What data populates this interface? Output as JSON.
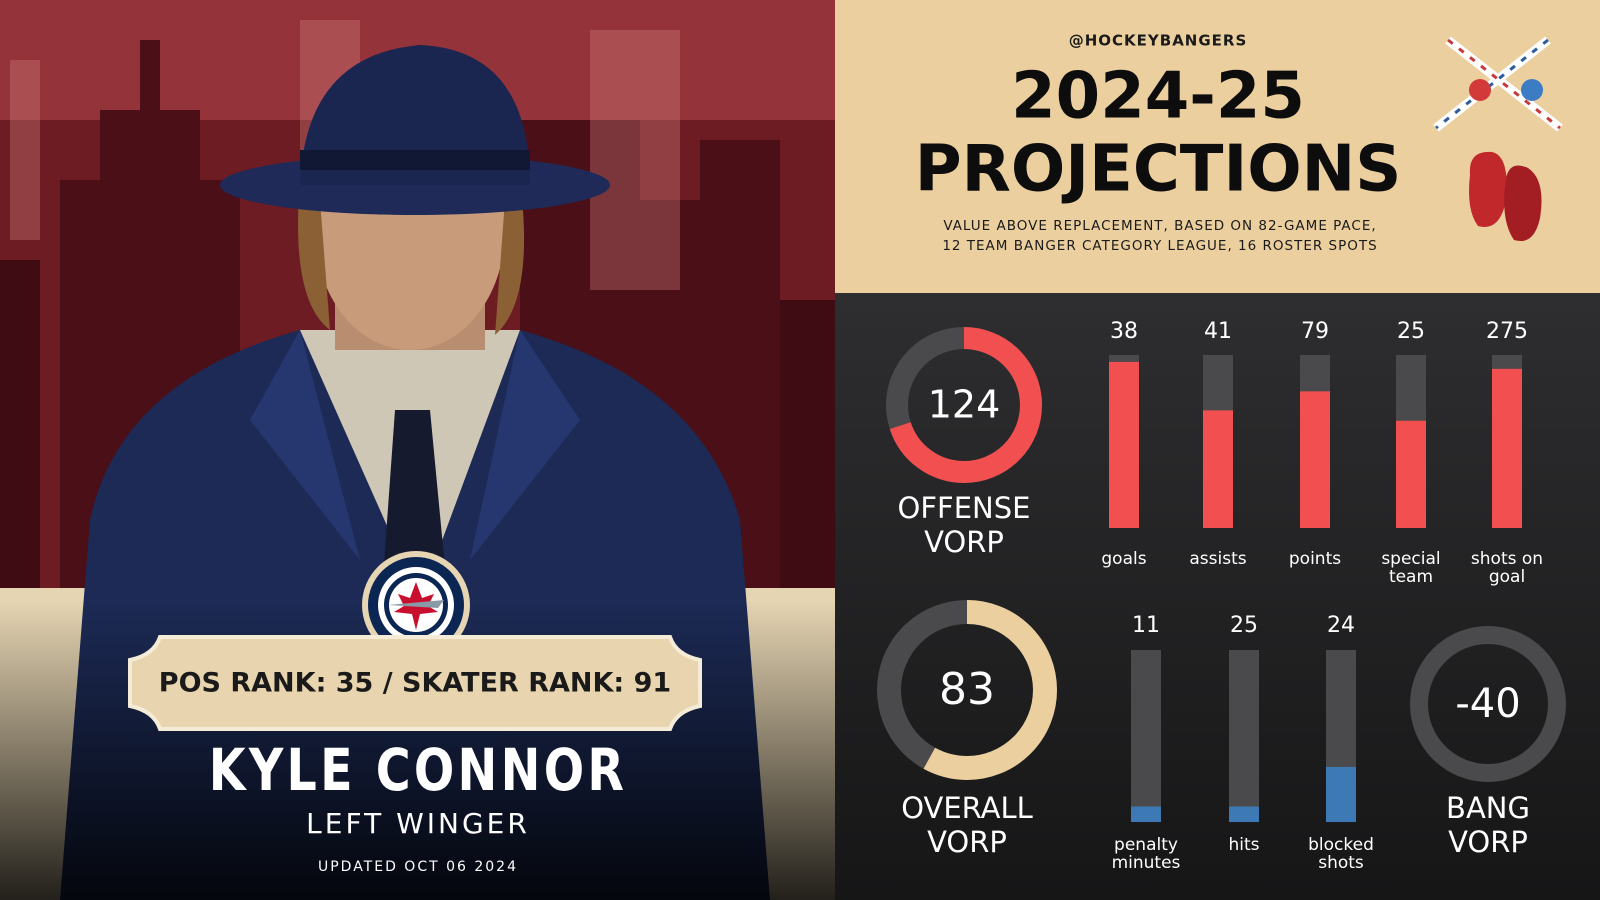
{
  "player": {
    "rank": "POS RANK: 35 / SKATER RANK: 91",
    "name": "KYLE CONNOR",
    "position": "LEFT WINGER",
    "updated": "UPDATED OCT 06 2024"
  },
  "header": {
    "handle": "@HOCKEYBANGERS",
    "title": [
      "2024-25",
      "PROJECTIONS"
    ],
    "subtitle": [
      "VALUE ABOVE REPLACEMENT, BASED ON 82-GAME PACE,",
      "12 TEAM BANGER CATEGORY LEAGUE, 16 ROSTER SPOTS"
    ]
  },
  "offense": {
    "value": 124,
    "fill": 70,
    "label": [
      "OFFENSE",
      "VORP"
    ],
    "stats": [
      {
        "value": 38,
        "fill": 96,
        "label": [
          "goals"
        ]
      },
      {
        "value": 41,
        "fill": 68,
        "label": [
          "assists"
        ]
      },
      {
        "value": 79,
        "fill": 79,
        "label": [
          "points"
        ]
      },
      {
        "value": 25,
        "fill": 62,
        "label": [
          "special",
          "team"
        ]
      },
      {
        "value": 275,
        "fill": 92,
        "label": [
          "shots on",
          "goal"
        ]
      }
    ]
  },
  "overall": {
    "value": 83,
    "fill": 58,
    "label": [
      "OVERALL",
      "VORP"
    ]
  },
  "bang": {
    "value": -40,
    "fill": 0,
    "label": [
      "BANG",
      "VORP"
    ],
    "stats": [
      {
        "value": 11,
        "fill": 9,
        "label": [
          "penalty",
          "minutes"
        ]
      },
      {
        "value": 25,
        "fill": 9,
        "label": [
          "hits"
        ]
      },
      {
        "value": 24,
        "fill": 32,
        "label": [
          "blocked",
          "shots"
        ]
      }
    ]
  }
}
